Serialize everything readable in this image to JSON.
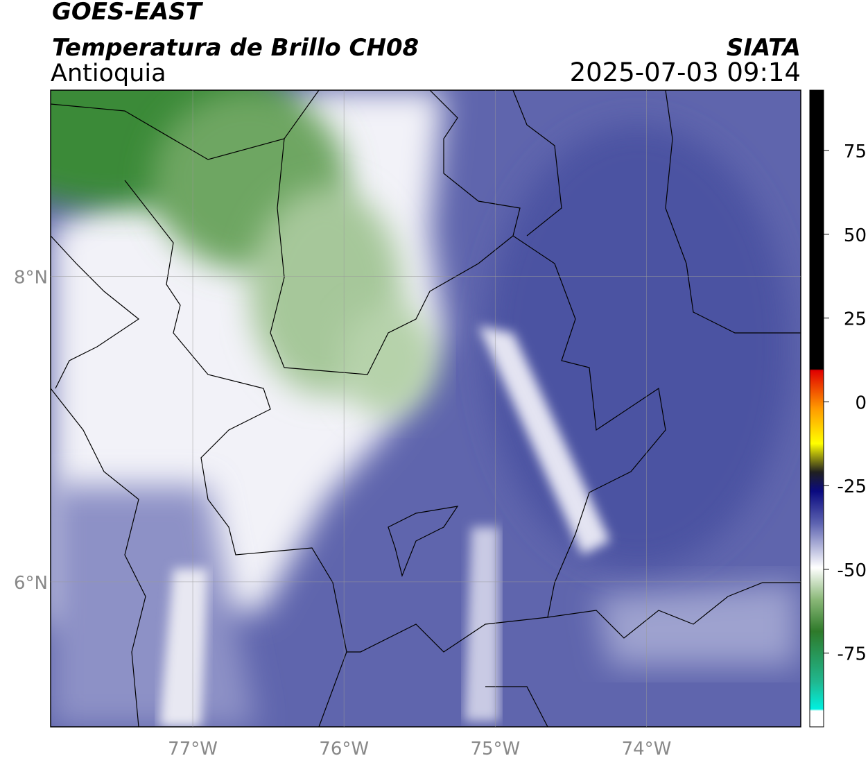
{
  "header": {
    "title": "GOES-EAST",
    "subtitle": "Temperatura de Brillo CH08",
    "region": "Antioquia",
    "source": "SIATA",
    "timestamp": "2025-07-03 09:14"
  },
  "map": {
    "lon_range": [
      -77.94,
      -72.98
    ],
    "lat_range": [
      5.05,
      9.22
    ],
    "lon_ticks": [
      {
        "value": -77,
        "label": "77°W"
      },
      {
        "value": -76,
        "label": "76°W"
      },
      {
        "value": -75,
        "label": "75°W"
      },
      {
        "value": -74,
        "label": "74°W"
      }
    ],
    "lat_ticks": [
      {
        "value": 8,
        "label": "8°N"
      },
      {
        "value": 6,
        "label": "6°N"
      }
    ],
    "grid": true
  },
  "colorbar": {
    "range": [
      -97,
      93
    ],
    "ticks": [
      75,
      50,
      25,
      0,
      -25,
      -50,
      -75
    ]
  }
}
